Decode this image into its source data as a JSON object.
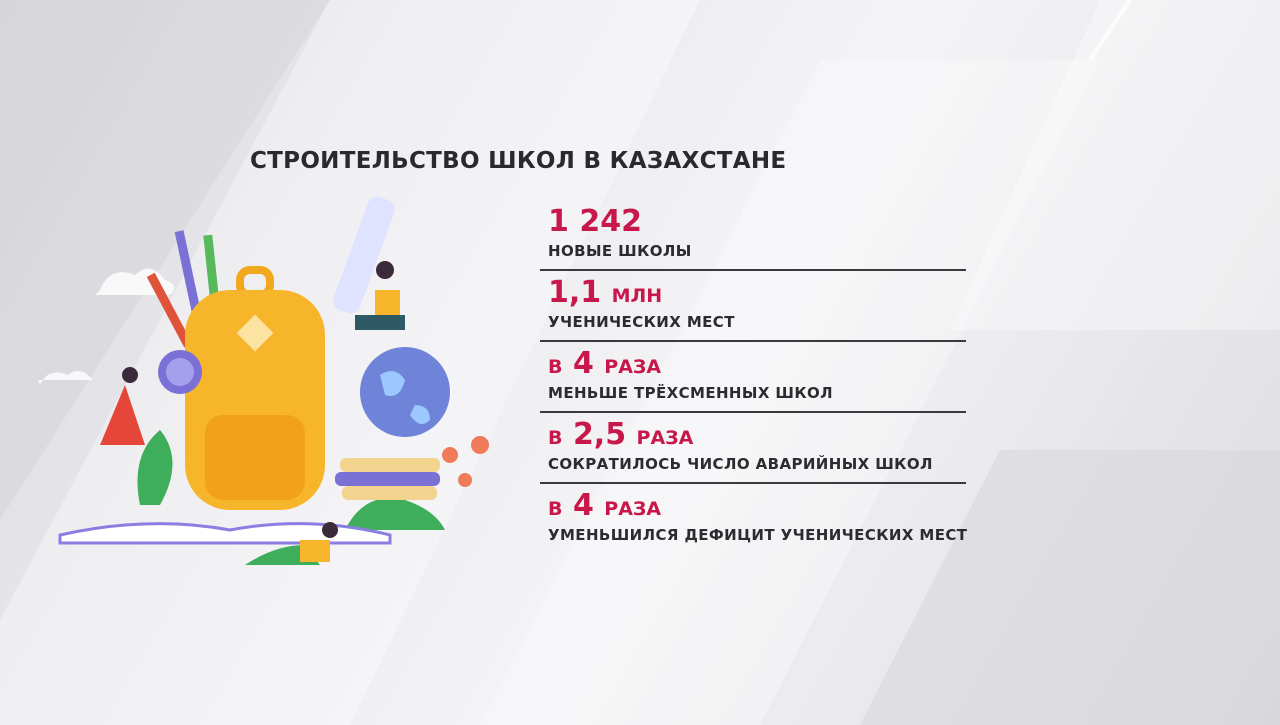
{
  "title": "СТРОИТЕЛЬСТВО ШКОЛ В КАЗАХСТАНЕ",
  "accent_color": "#c8174a",
  "stats": [
    {
      "prefix": "",
      "value": "1 242",
      "unit": "",
      "label": "НОВЫЕ ШКОЛЫ"
    },
    {
      "prefix": "",
      "value": "1,1",
      "unit": "МЛН",
      "label": "УЧЕНИЧЕСКИХ МЕСТ"
    },
    {
      "prefix": "В",
      "value": "4",
      "unit": "РАЗА",
      "label": "МЕНЬШЕ ТРЁХСМЕННЫХ ШКОЛ"
    },
    {
      "prefix": "В",
      "value": "2,5",
      "unit": "РАЗА",
      "label": "СОКРАТИЛОСЬ ЧИСЛО АВАРИЙНЫХ ШКОЛ"
    },
    {
      "prefix": "В",
      "value": "4",
      "unit": "РАЗА",
      "label": "УМЕНЬШИЛСЯ ДЕФИЦИТ УЧЕНИЧЕСКИХ МЕСТ"
    }
  ],
  "illustration": "school-backpack-illustration"
}
